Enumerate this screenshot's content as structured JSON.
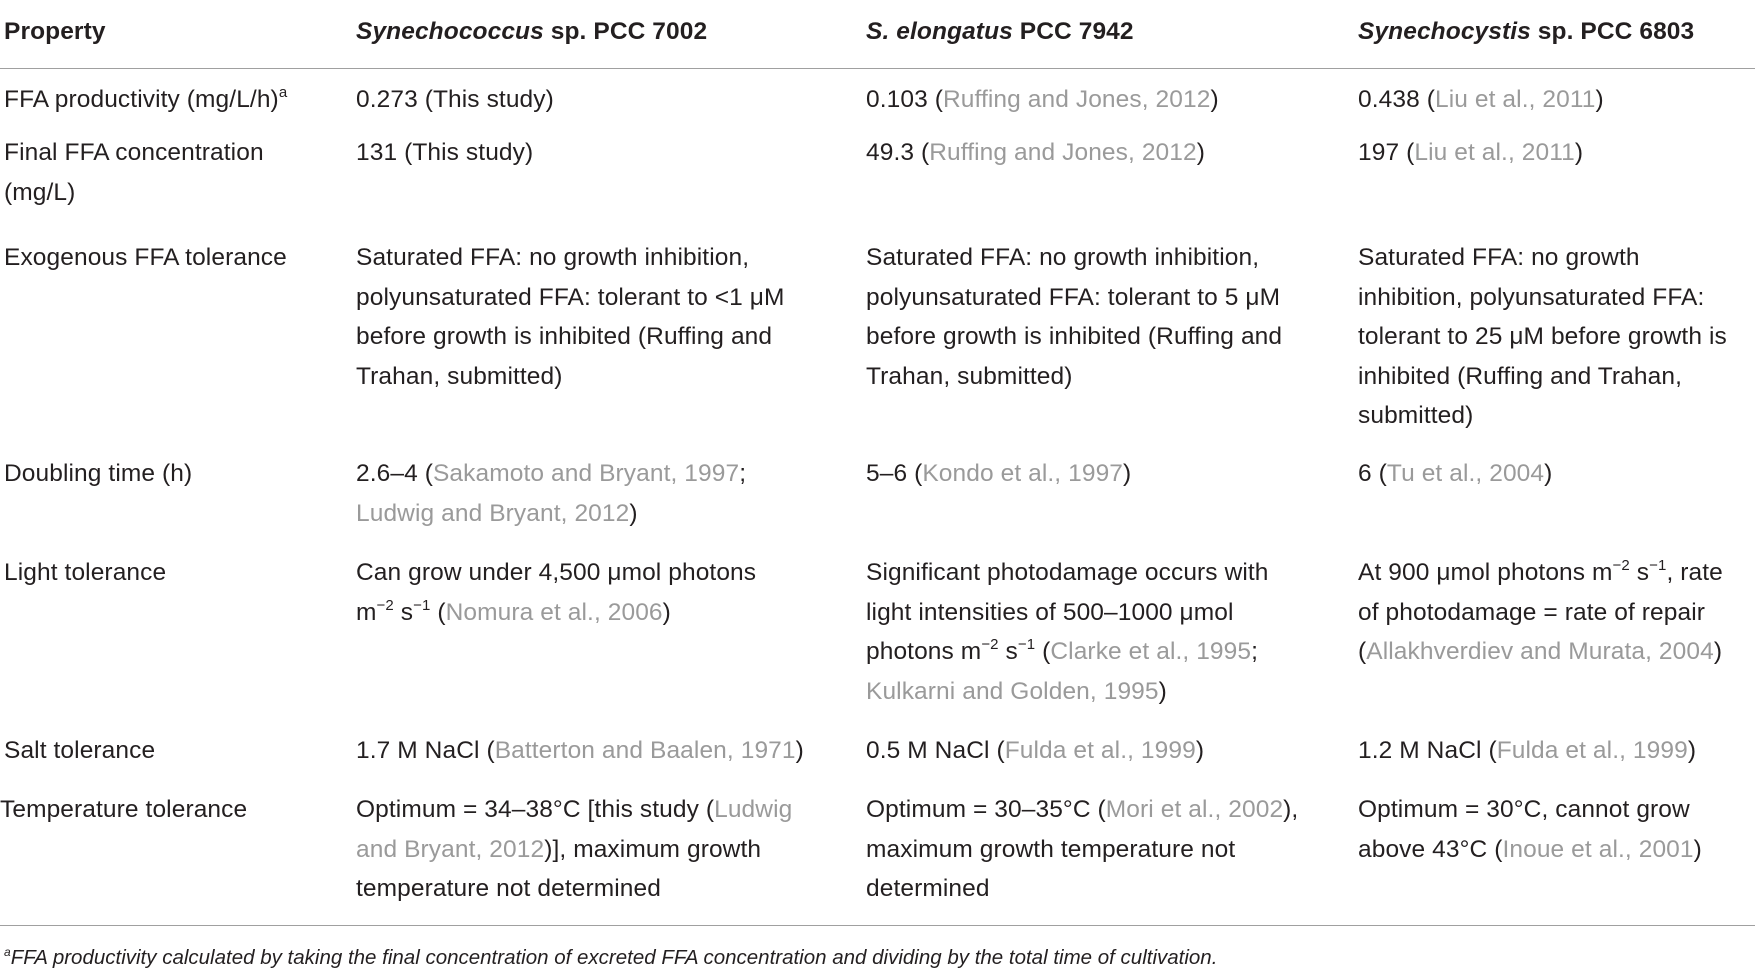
{
  "table": {
    "headers": [
      {
        "label": "Property"
      },
      {
        "italic": "Synechococcus",
        "rest": " sp. PCC 7002"
      },
      {
        "italic": "S. elongatus",
        "rest": " PCC 7942"
      },
      {
        "italic": "Synechocystis",
        "rest": " sp. PCC 6803"
      }
    ],
    "rows": [
      {
        "property": "FFA productivity (mg/L/h)",
        "property_sup": "a",
        "c1": {
          "text": "0.273 (This study)"
        },
        "c2": {
          "pre": "0.103 (",
          "ref": "Ruffing and Jones, 2012",
          "post": ")"
        },
        "c3": {
          "pre": "0.438 (",
          "ref": "Liu et al., 2011",
          "post": ")"
        }
      },
      {
        "property": "Final FFA concentration (mg/L)",
        "c1": {
          "text": "131 (This study)"
        },
        "c2": {
          "pre": "49.3 (",
          "ref": "Ruffing and Jones, 2012",
          "post": ")"
        },
        "c3": {
          "pre": "197 (",
          "ref": "Liu et al., 2011",
          "post": ")"
        }
      },
      {
        "property": "Exogenous FFA tolerance",
        "c1": {
          "text": "Saturated FFA: no growth inhibition, polyunsaturated FFA: tolerant to <1 μM before growth is inhibited (Ruffing and Trahan, submitted)"
        },
        "c2": {
          "text": "Saturated FFA: no growth inhibition, polyunsaturated FFA: tolerant to 5 μM before growth is inhibited (Ruffing and Trahan, submitted)"
        },
        "c3": {
          "text": "Saturated FFA: no growth inhibition, polyunsaturated FFA: tolerant to 25 μM before growth is inhibited (Ruffing and Trahan, submitted)"
        }
      },
      {
        "property": "Doubling time (h)",
        "c1": {
          "pre": "2.6–4 (",
          "ref": "Sakamoto and Bryant, 1997",
          "mid": "; ",
          "ref2": "Ludwig and Bryant, 2012",
          "post": ")"
        },
        "c2": {
          "pre": "5–6 (",
          "ref": "Kondo et al., 1997",
          "post": ")"
        },
        "c3": {
          "pre": "6 (",
          "ref": "Tu et al., 2004",
          "post": ")"
        }
      },
      {
        "property": "Light tolerance",
        "c1": {
          "pre": "Can grow under 4,500 μmol photons m",
          "sup1": "−2",
          "mid": " s",
          "sup2": "−1",
          "mid2": " (",
          "ref": "Nomura et al., 2006",
          "post": ")"
        },
        "c2": {
          "pre": "Significant photodamage occurs with light intensities of 500–1000 μmol photons m",
          "sup1": "−2",
          "mid": " s",
          "sup2": "−1",
          "mid2": " (",
          "ref": "Clarke et al., 1995",
          "mid3": "; ",
          "ref2": "Kulkarni and Golden, 1995",
          "post": ")"
        },
        "c3": {
          "pre": "At 900 μmol photons m",
          "sup1": "−2",
          "mid": " s",
          "sup2": "−1",
          "mid2": ", rate of photodamage = rate of repair (",
          "ref": "Allakhverdiev and Murata, 2004",
          "post": ")"
        }
      },
      {
        "property": "Salt tolerance",
        "c1": {
          "pre": "1.7 M NaCl (",
          "ref": "Batterton and Baalen, 1971",
          "post": ")"
        },
        "c2": {
          "pre": "0.5 M NaCl (",
          "ref": "Fulda et al., 1999",
          "post": ")"
        },
        "c3": {
          "pre": "1.2 M NaCl (",
          "ref": "Fulda et al., 1999",
          "post": ")"
        }
      },
      {
        "property": "Temperature tolerance",
        "c1": {
          "pre": "Optimum = 34–38°C [this study (",
          "ref": "Ludwig and Bryant, 2012",
          "post": ")], maximum growth temperature not determined"
        },
        "c2": {
          "pre": "Optimum = 30–35°C (",
          "ref": "Mori et al., 2002",
          "post": "), maximum growth temperature not determined"
        },
        "c3": {
          "pre": "Optimum = 30°C, cannot grow above 43°C (",
          "ref": "Inoue et al., 2001",
          "post": ")"
        }
      }
    ]
  },
  "footnote": {
    "sup": "a",
    "text": "FFA productivity calculated by taking the final concentration of excreted FFA concentration and dividing by the total time of cultivation."
  }
}
